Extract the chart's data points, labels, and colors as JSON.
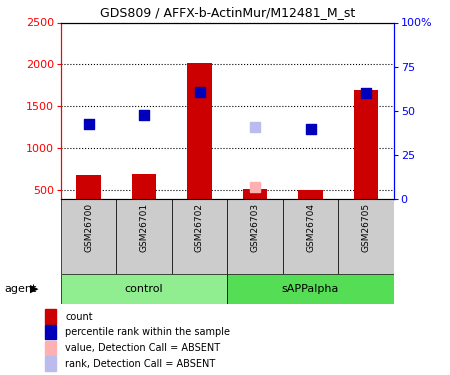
{
  "title": "GDS809 / AFFX-b-ActinMur/M12481_M_st",
  "samples": [
    "GSM26700",
    "GSM26701",
    "GSM26702",
    "GSM26703",
    "GSM26704",
    "GSM26705"
  ],
  "group_labels": [
    "control",
    "sAPPalpha"
  ],
  "control_color": "#90EE90",
  "sapp_color": "#55DD55",
  "sample_bg": "#CCCCCC",
  "bar_color": "#CC0000",
  "dot_color_present": "#0000BB",
  "dot_color_absent_value": "#FFB0B0",
  "dot_color_absent_rank": "#BBBBEE",
  "counts": [
    680,
    700,
    2020,
    520,
    510,
    1700
  ],
  "ranks_present": [
    1290,
    1400,
    1670,
    null,
    1230,
    1660
  ],
  "absent_value": [
    null,
    null,
    null,
    540,
    null,
    null
  ],
  "absent_rank": [
    null,
    null,
    null,
    1250,
    null,
    null
  ],
  "ylim_left": [
    400,
    2500
  ],
  "ylim_right": [
    0,
    100
  ],
  "yticks_left": [
    500,
    1000,
    1500,
    2000,
    2500
  ],
  "yticks_right": [
    0,
    25,
    50,
    75,
    100
  ],
  "ytick_right_labels": [
    "0",
    "25",
    "50",
    "75",
    "100%"
  ],
  "agent_label": "agent",
  "legend_items": [
    {
      "color": "#CC0000",
      "label": "count"
    },
    {
      "color": "#0000BB",
      "label": "percentile rank within the sample"
    },
    {
      "color": "#FFB0B0",
      "label": "value, Detection Call = ABSENT"
    },
    {
      "color": "#BBBBEE",
      "label": "rank, Detection Call = ABSENT"
    }
  ]
}
